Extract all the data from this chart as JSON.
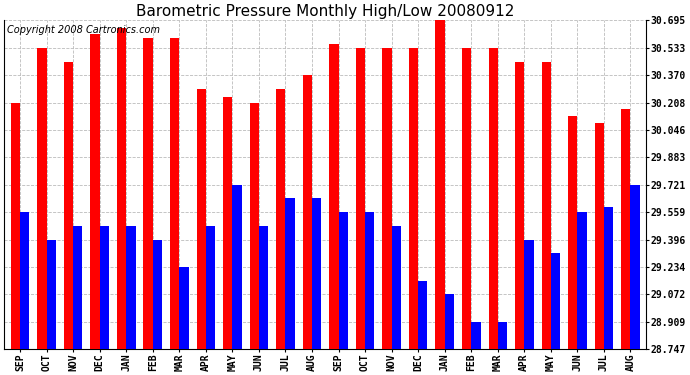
{
  "title": "Barometric Pressure Monthly High/Low 20080912",
  "copyright": "Copyright 2008 Cartronics.com",
  "categories": [
    "SEP",
    "OCT",
    "NOV",
    "DEC",
    "JAN",
    "FEB",
    "MAR",
    "APR",
    "MAY",
    "JUN",
    "JUL",
    "AUG",
    "SEP",
    "OCT",
    "NOV",
    "DEC",
    "JAN",
    "FEB",
    "MAR",
    "APR",
    "MAY",
    "JUN",
    "JUL",
    "AUG"
  ],
  "highs": [
    30.208,
    30.533,
    30.451,
    30.614,
    30.649,
    30.59,
    30.59,
    30.289,
    30.241,
    30.208,
    30.289,
    30.37,
    30.557,
    30.533,
    30.533,
    30.533,
    30.695,
    30.533,
    30.533,
    30.451,
    30.451,
    30.127,
    30.087,
    30.168
  ],
  "lows": [
    29.559,
    29.396,
    29.477,
    29.477,
    29.477,
    29.396,
    29.234,
    29.477,
    29.721,
    29.477,
    29.64,
    29.64,
    29.559,
    29.559,
    29.477,
    29.153,
    29.072,
    28.909,
    28.909,
    29.396,
    29.316,
    29.559,
    29.59,
    29.721
  ],
  "bar_color_high": "#FF0000",
  "bar_color_low": "#0000FF",
  "bg_color": "#FFFFFF",
  "grid_color": "#BBBBBB",
  "yticks": [
    28.747,
    28.909,
    29.072,
    29.234,
    29.396,
    29.559,
    29.721,
    29.883,
    30.046,
    30.208,
    30.37,
    30.533,
    30.695
  ],
  "ymin": 28.747,
  "ymax": 30.695,
  "title_fontsize": 11,
  "copyright_fontsize": 7,
  "tick_fontsize": 7,
  "bar_width": 0.35
}
